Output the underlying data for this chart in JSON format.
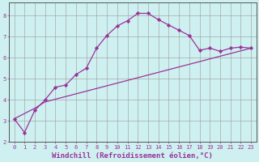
{
  "xlabel": "Windchill (Refroidissement éolien,°C)",
  "bg_color": "#cff0f0",
  "grid_color": "#999999",
  "line_color": "#993399",
  "xlim": [
    -0.5,
    23.5
  ],
  "ylim": [
    2.0,
    8.6
  ],
  "xticks": [
    0,
    1,
    2,
    3,
    4,
    5,
    6,
    7,
    8,
    9,
    10,
    11,
    12,
    13,
    14,
    15,
    16,
    17,
    18,
    19,
    20,
    21,
    22,
    23
  ],
  "yticks": [
    2,
    3,
    4,
    5,
    6,
    7,
    8
  ],
  "curve1_x": [
    0,
    1,
    2,
    3,
    4,
    5,
    6,
    7,
    8,
    9,
    10,
    11,
    12,
    13,
    14,
    15,
    16,
    17,
    18,
    19,
    20,
    21,
    22,
    23
  ],
  "curve1_y": [
    3.1,
    2.45,
    3.5,
    4.0,
    4.6,
    4.7,
    5.2,
    5.5,
    6.45,
    7.05,
    7.5,
    7.75,
    8.1,
    8.1,
    7.8,
    7.55,
    7.3,
    7.05,
    6.35,
    6.45,
    6.3,
    6.45,
    6.5,
    6.45
  ],
  "curve2_x": [
    0,
    2,
    3,
    23
  ],
  "curve2_y": [
    3.1,
    3.6,
    3.9,
    6.45
  ],
  "marker": "D",
  "markersize": 2.2,
  "linewidth": 0.9,
  "tick_fontsize": 5.0,
  "xlabel_fontsize": 6.5
}
